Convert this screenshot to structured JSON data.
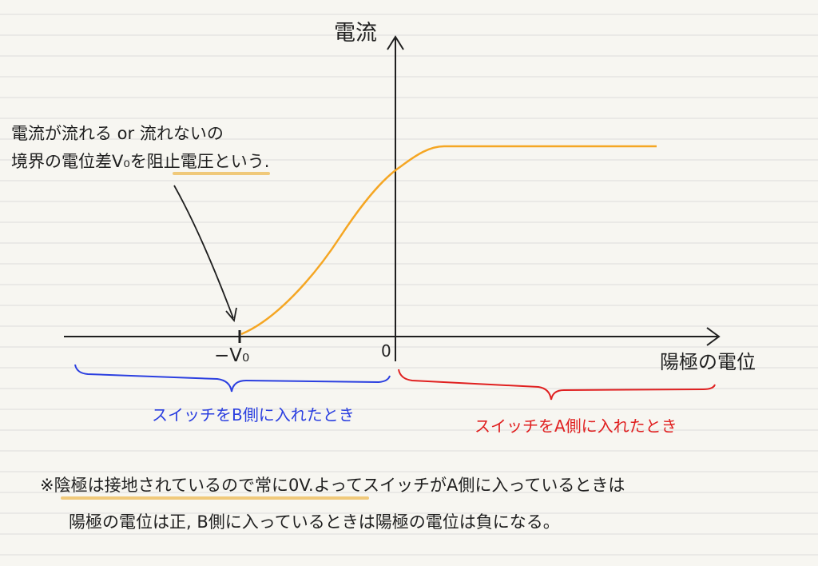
{
  "axes": {
    "y_label": "電流",
    "x_label": "陽極の電位",
    "origin_label": "0",
    "v0_label": "−V₀"
  },
  "annotation": {
    "line1": "電流が流れる or 流れないの",
    "line2_prefix": "境界の電位差V₀を",
    "line2_term": "阻止電圧",
    "line2_suffix": "という."
  },
  "braces": {
    "left_label": "スイッチをB側に入れたとき",
    "right_label": "スイッチをA側に入れたとき"
  },
  "note": {
    "mark": "※",
    "line1_highlight": "陰極は接地されているので常に0V.",
    "line1_rest": "よってスイッチがA側に入っているときは",
    "line2": "陽極の電位は正, B側に入っているときは陽極の電位は負になる。"
  },
  "colors": {
    "curve": "#f5a623",
    "underline": "#f0c97a",
    "left_brace": "#2b3fe0",
    "right_brace": "#e02020",
    "ink": "#1f1f1f",
    "rule_line": "#dcdcdc"
  }
}
